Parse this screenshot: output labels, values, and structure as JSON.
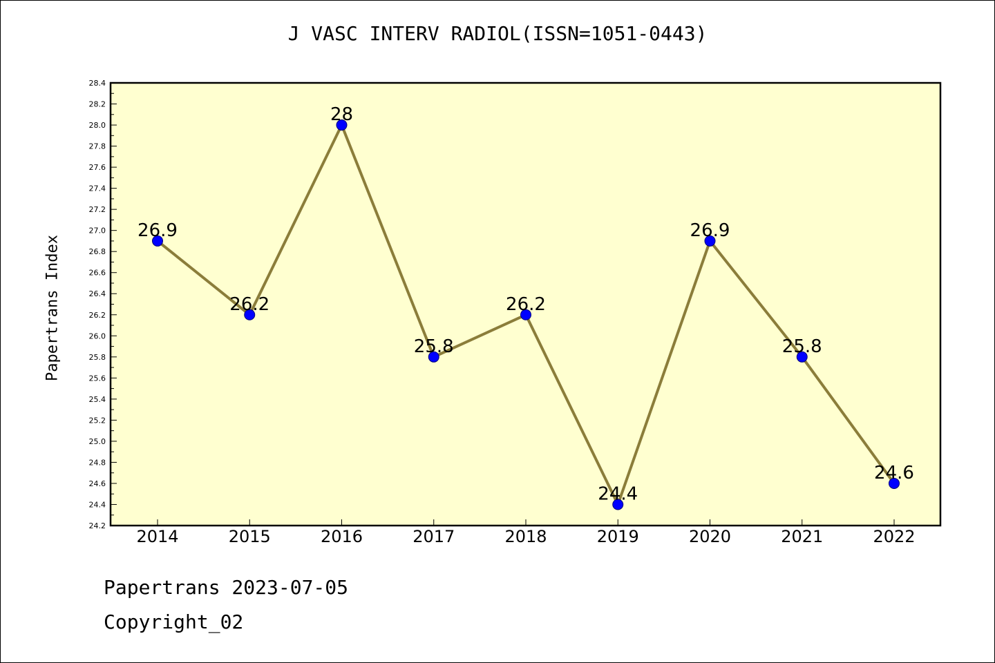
{
  "chart_data": {
    "type": "line",
    "title": "J VASC INTERV RADIOL(ISSN=1051-0443)",
    "xlabel": "",
    "ylabel": "Papertrans Index",
    "categories": [
      "2014",
      "2015",
      "2016",
      "2017",
      "2018",
      "2019",
      "2020",
      "2021",
      "2022"
    ],
    "series": [
      {
        "values": [
          26.9,
          26.2,
          28.0,
          25.8,
          26.2,
          24.4,
          26.9,
          25.8,
          24.6
        ],
        "labels": [
          "26.9",
          "26.2",
          "28",
          "25.8",
          "26.2",
          "24.4",
          "26.9",
          "25.8",
          "24.6"
        ]
      }
    ],
    "ylim": [
      24.2,
      28.4
    ],
    "yticks": [
      "24.2",
      "24.4",
      "24.6",
      "24.8",
      "25.0",
      "25.2",
      "25.4",
      "25.6",
      "25.8",
      "26.0",
      "26.2",
      "26.4",
      "26.6",
      "26.8",
      "27.0",
      "27.2",
      "27.4",
      "27.6",
      "27.8",
      "28.0",
      "28.2",
      "28.4"
    ],
    "grid": false,
    "colors": {
      "plot_background": "#ffffd0",
      "line": "#8b7d3a",
      "marker": "#0000ff",
      "axis": "#000000"
    }
  },
  "footer": {
    "date_line": "Papertrans 2023-07-05",
    "copyright": "Copyright_02"
  }
}
